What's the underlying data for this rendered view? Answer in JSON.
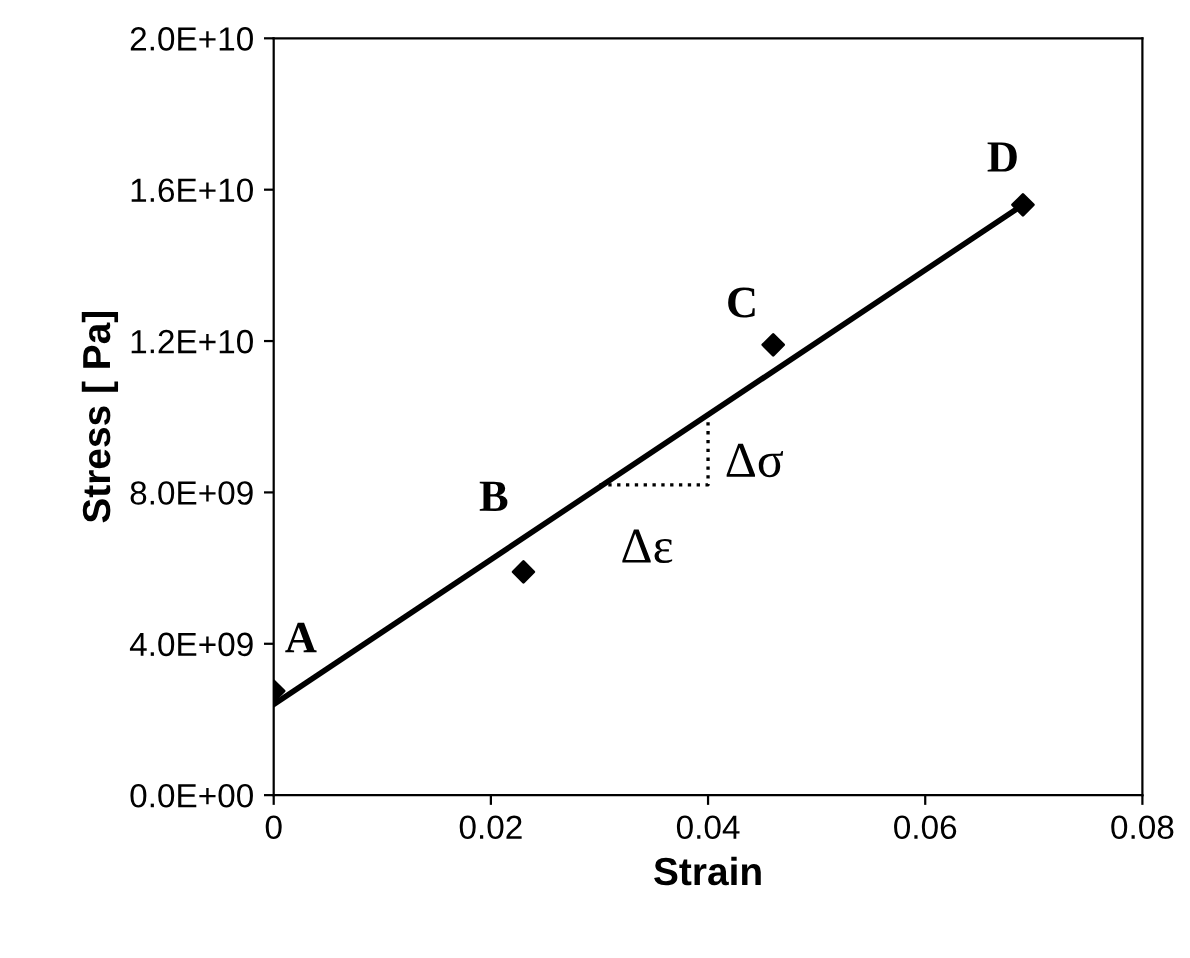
{
  "chart_data": {
    "type": "scatter",
    "xlabel": "Strain",
    "ylabel": "Stress [ Pa]",
    "xlim": [
      0,
      0.08
    ],
    "xticks": [
      0,
      0.02,
      0.04,
      0.06,
      0.08
    ],
    "ylim": [
      0,
      20000000000
    ],
    "yticks": [
      {
        "value": 0,
        "label": "0.0E+00"
      },
      {
        "value": 4000000000,
        "label": "4.0E+09"
      },
      {
        "value": 8000000000,
        "label": "8.0E+09"
      },
      {
        "value": 12000000000,
        "label": "1.2E+10"
      },
      {
        "value": 16000000000,
        "label": "1.6E+10"
      },
      {
        "value": 20000000000,
        "label": "2.0E+10"
      }
    ],
    "grid": false,
    "legend": false,
    "series": [
      {
        "color": "#000000",
        "marker": "diamond",
        "x": [
          0,
          0.023,
          0.046,
          0.069
        ],
        "values": [
          2750000000,
          5900000000,
          11900000000,
          15600000000
        ]
      },
      {
        "type": "line",
        "color": "#000000",
        "marker": "none",
        "line_style": "solid",
        "x": [
          0,
          0.069
        ],
        "values": [
          2400000000,
          15600000000
        ]
      },
      {
        "type": "line",
        "color": "#000000",
        "marker": "none",
        "line_style": "dotted",
        "x": [
          0.03,
          0.04,
          0.04
        ],
        "values": [
          8200000000,
          8200000000,
          10100000000
        ]
      }
    ],
    "annotations": [
      {
        "text": "A",
        "x": 0,
        "y": 2750000000
      },
      {
        "text": "B",
        "x": 0.023,
        "y": 5900000000
      },
      {
        "text": "C",
        "x": 0.046,
        "y": 11900000000
      },
      {
        "text": "D",
        "x": 0.069,
        "y": 15600000000
      },
      {
        "text": "Δσ",
        "x": 0.04,
        "y": 9150000000
      },
      {
        "text": "Δε",
        "x": 0.035,
        "y": 8200000000
      }
    ]
  }
}
